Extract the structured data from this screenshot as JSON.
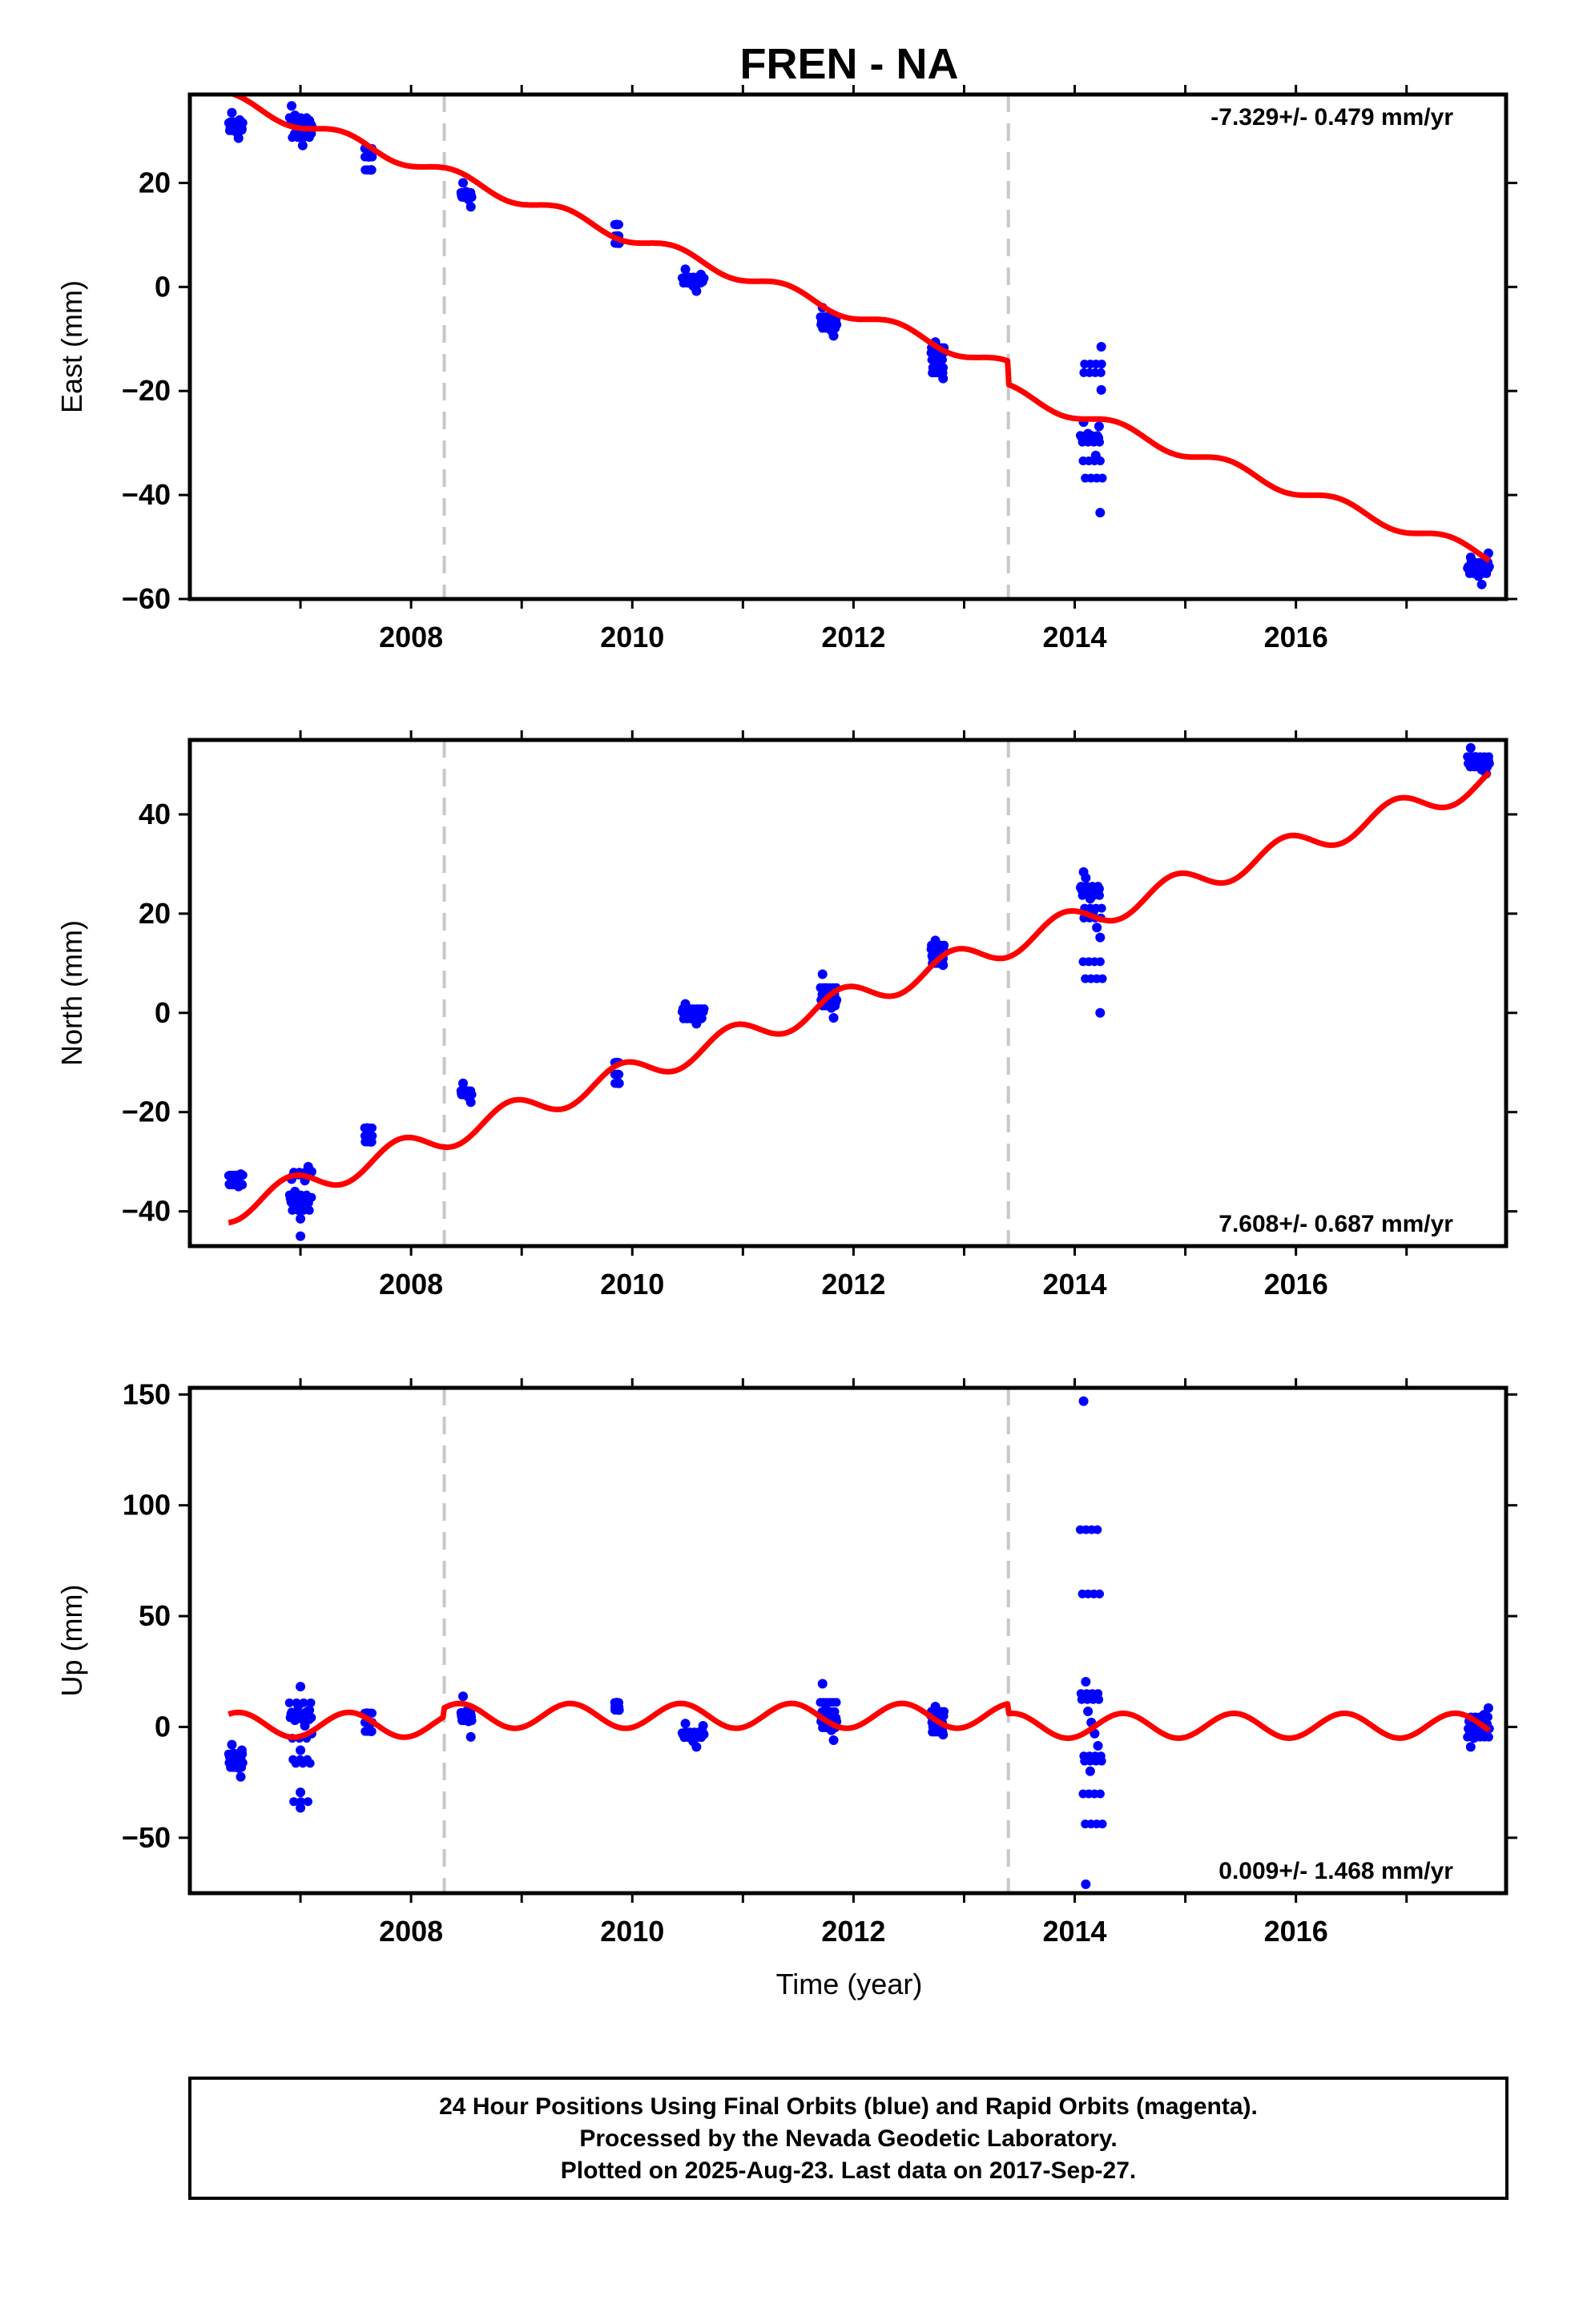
{
  "title": "FREN - NA",
  "xlabel": "Time (year)",
  "footer": {
    "line1": "24 Hour Positions Using Final Orbits (blue) and Rapid Orbits (magenta).",
    "line2": "Processed by the Nevada Geodetic Laboratory.",
    "line3": "Plotted on 2025-Aug-23. Last data on 2017-Sep-27."
  },
  "colors": {
    "data": "#0000ff",
    "model": "#ff0000",
    "break": "#c8c8c8",
    "frame": "#000000"
  },
  "chart_data": [
    {
      "type": "scatter",
      "name": "East",
      "ylabel": "East (mm)",
      "rate_text": "-7.329+/- 0.479 mm/yr",
      "xlim": [
        2006.0,
        2017.9
      ],
      "ylim": [
        -60,
        37
      ],
      "yticks": [
        20,
        0,
        -20,
        -40,
        -60
      ],
      "ytick_labels": [
        "20",
        "0",
        "−20",
        "−40",
        "−60"
      ],
      "xticks": [
        2008,
        2010,
        2012,
        2014,
        2016
      ],
      "xtick_labels": [
        "2008",
        "2010",
        "2012",
        "2014",
        "2016"
      ],
      "breaks": [
        2008.3,
        2013.4
      ],
      "model": {
        "rate": -7.329,
        "offset_at_2012": -5.2,
        "annual_amp": 1.2,
        "annual_phase": 5.4,
        "steps": [
          [
            2008.3,
            0.0
          ],
          [
            2013.4,
            -4.5
          ]
        ]
      },
      "clusters": [
        {
          "t": [
            2006.35,
            2006.48
          ],
          "points": [
            [
              2006.38,
              33.5
            ],
            [
              2006.4,
              31.2
            ],
            [
              2006.42,
              29.8
            ],
            [
              2006.44,
              28.6
            ],
            [
              2006.45,
              32.1
            ],
            [
              2006.47,
              30.4
            ]
          ]
        },
        {
          "t": [
            2006.9,
            2007.1
          ],
          "points": [
            [
              2006.92,
              34.8
            ],
            [
              2006.95,
              33.0
            ],
            [
              2006.97,
              31.5
            ],
            [
              2007.0,
              29.2
            ],
            [
              2007.02,
              27.2
            ],
            [
              2007.05,
              30.5
            ],
            [
              2007.08,
              32.0
            ],
            [
              2007.1,
              31.0
            ]
          ]
        },
        {
          "t": [
            2007.58,
            2007.65
          ],
          "points": [
            [
              2007.6,
              26.6
            ],
            [
              2007.62,
              25.0
            ],
            [
              2007.64,
              22.5
            ]
          ]
        },
        {
          "t": [
            2008.45,
            2008.55
          ],
          "points": [
            [
              2008.47,
              20.0
            ],
            [
              2008.5,
              18.3
            ],
            [
              2008.52,
              16.8
            ],
            [
              2008.54,
              15.4
            ]
          ]
        },
        {
          "t": [
            2009.84,
            2009.88
          ],
          "points": [
            [
              2009.86,
              12.0
            ],
            [
              2009.87,
              9.8
            ],
            [
              2009.88,
              8.4
            ]
          ]
        },
        {
          "t": [
            2010.45,
            2010.65
          ],
          "points": [
            [
              2010.48,
              3.4
            ],
            [
              2010.52,
              1.2
            ],
            [
              2010.55,
              0.2
            ],
            [
              2010.58,
              -0.8
            ],
            [
              2010.62,
              2.4
            ],
            [
              2010.64,
              1.5
            ]
          ]
        },
        {
          "t": [
            2011.7,
            2011.85
          ],
          "points": [
            [
              2011.72,
              -4.0
            ],
            [
              2011.75,
              -5.8
            ],
            [
              2011.78,
              -7.0
            ],
            [
              2011.8,
              -8.4
            ],
            [
              2011.82,
              -9.4
            ],
            [
              2011.84,
              -6.2
            ]
          ]
        },
        {
          "t": [
            2012.7,
            2012.82
          ],
          "points": [
            [
              2012.74,
              -10.6
            ],
            [
              2012.76,
              -12.4
            ],
            [
              2012.78,
              -14.0
            ],
            [
              2012.8,
              -15.8
            ],
            [
              2012.81,
              -17.6
            ]
          ]
        },
        {
          "t": [
            2014.05,
            2014.25
          ],
          "points": [
            [
              2014.08,
              -26.0
            ],
            [
              2014.12,
              -28.2
            ],
            [
              2014.16,
              -29.6
            ],
            [
              2014.19,
              -32.4
            ],
            [
              2014.22,
              -26.8
            ],
            [
              2014.24,
              -19.8
            ],
            [
              2014.24,
              -11.5
            ],
            [
              2014.23,
              -43.4
            ]
          ]
        },
        {
          "t": [
            2017.55,
            2017.75
          ],
          "points": [
            [
              2017.58,
              -52.0
            ],
            [
              2017.62,
              -54.0
            ],
            [
              2017.65,
              -55.6
            ],
            [
              2017.68,
              -57.2
            ],
            [
              2017.72,
              -53.4
            ],
            [
              2017.74,
              -51.2
            ]
          ]
        }
      ]
    },
    {
      "type": "scatter",
      "name": "North",
      "ylabel": "North (mm)",
      "rate_text": "7.608+/- 0.687 mm/yr",
      "xlim": [
        2006.0,
        2017.9
      ],
      "ylim": [
        -47,
        55
      ],
      "yticks": [
        40,
        20,
        0,
        -20,
        -40
      ],
      "ytick_labels": [
        "40",
        "20",
        "0",
        "−20",
        "−40"
      ],
      "xticks": [
        2008,
        2010,
        2012,
        2014,
        2016
      ],
      "xtick_labels": [
        "2008",
        "2010",
        "2012",
        "2014",
        "2016"
      ],
      "breaks": [
        2008.3,
        2013.4
      ],
      "model": {
        "rate": 7.608,
        "offset_at_2012": 3.2,
        "annual_amp": 2.6,
        "annual_phase": 2.2,
        "steps": [
          [
            2008.3,
            0.0
          ],
          [
            2013.4,
            0.0
          ]
        ]
      },
      "clusters": [
        {
          "t": [
            2006.35,
            2006.48
          ],
          "points": [
            [
              2006.38,
              -33.0
            ],
            [
              2006.41,
              -34.2
            ],
            [
              2006.44,
              -35.0
            ],
            [
              2006.46,
              -32.5
            ]
          ]
        },
        {
          "t": [
            2006.9,
            2007.1
          ],
          "points": [
            [
              2006.92,
              -33.5
            ],
            [
              2006.95,
              -36.0
            ],
            [
              2006.97,
              -39.5
            ],
            [
              2007.0,
              -41.5
            ],
            [
              2007.0,
              -45.0
            ],
            [
              2007.04,
              -33.8
            ],
            [
              2007.07,
              -31.0
            ],
            [
              2007.1,
              -32.0
            ]
          ]
        },
        {
          "t": [
            2007.58,
            2007.65
          ],
          "points": [
            [
              2007.6,
              -23.2
            ],
            [
              2007.62,
              -24.8
            ],
            [
              2007.64,
              -26.0
            ]
          ]
        },
        {
          "t": [
            2008.45,
            2008.55
          ],
          "points": [
            [
              2008.47,
              -14.2
            ],
            [
              2008.5,
              -15.8
            ],
            [
              2008.52,
              -17.0
            ],
            [
              2008.54,
              -18.0
            ]
          ]
        },
        {
          "t": [
            2009.84,
            2009.88
          ],
          "points": [
            [
              2009.86,
              -10.0
            ],
            [
              2009.87,
              -12.4
            ],
            [
              2009.88,
              -14.2
            ]
          ]
        },
        {
          "t": [
            2010.45,
            2010.65
          ],
          "points": [
            [
              2010.48,
              1.8
            ],
            [
              2010.52,
              0.2
            ],
            [
              2010.55,
              -1.2
            ],
            [
              2010.58,
              -2.2
            ],
            [
              2010.62,
              0.6
            ]
          ]
        },
        {
          "t": [
            2011.7,
            2011.85
          ],
          "points": [
            [
              2011.72,
              7.8
            ],
            [
              2011.75,
              5.0
            ],
            [
              2011.78,
              3.0
            ],
            [
              2011.8,
              1.0
            ],
            [
              2011.82,
              -1.0
            ],
            [
              2011.84,
              2.2
            ]
          ]
        },
        {
          "t": [
            2012.7,
            2012.82
          ],
          "points": [
            [
              2012.74,
              14.6
            ],
            [
              2012.76,
              13.0
            ],
            [
              2012.78,
              11.5
            ],
            [
              2012.8,
              10.2
            ],
            [
              2012.81,
              9.6
            ]
          ]
        },
        {
          "t": [
            2014.05,
            2014.25
          ],
          "points": [
            [
              2014.08,
              28.4
            ],
            [
              2014.1,
              27.2
            ],
            [
              2014.14,
              23.0
            ],
            [
              2014.17,
              20.5
            ],
            [
              2014.2,
              17.2
            ],
            [
              2014.23,
              15.2
            ],
            [
              2014.22,
              25.0
            ],
            [
              2014.23,
              0.0
            ]
          ]
        },
        {
          "t": [
            2017.55,
            2017.75
          ],
          "points": [
            [
              2017.58,
              53.4
            ],
            [
              2017.62,
              51.6
            ],
            [
              2017.65,
              50.2
            ],
            [
              2017.68,
              49.0
            ],
            [
              2017.72,
              48.2
            ],
            [
              2017.74,
              50.8
            ]
          ]
        }
      ]
    },
    {
      "type": "scatter",
      "name": "Up",
      "ylabel": "Up (mm)",
      "rate_text": "0.009+/- 1.468 mm/yr",
      "xlim": [
        2006.0,
        2017.9
      ],
      "ylim": [
        -75,
        153
      ],
      "yticks": [
        150,
        100,
        50,
        0,
        -50
      ],
      "ytick_labels": [
        "150",
        "100",
        "50",
        "0",
        "−50"
      ],
      "xticks": [
        2008,
        2010,
        2012,
        2014,
        2016
      ],
      "xtick_labels": [
        "2008",
        "2010",
        "2012",
        "2014",
        "2016"
      ],
      "breaks": [
        2008.3,
        2013.4
      ],
      "model": {
        "rate": 0.009,
        "offset_at_2012": 1.0,
        "annual_amp": 5.6,
        "annual_phase": 5.1,
        "steps": [
          [
            2008.3,
            4.0
          ],
          [
            2013.4,
            -4.5
          ]
        ]
      },
      "clusters": [
        {
          "t": [
            2006.35,
            2006.48
          ],
          "points": [
            [
              2006.38,
              -8.0
            ],
            [
              2006.4,
              -12.0
            ],
            [
              2006.42,
              -15.5
            ],
            [
              2006.44,
              -18.5
            ],
            [
              2006.46,
              -22.5
            ],
            [
              2006.47,
              -10.5
            ]
          ]
        },
        {
          "t": [
            2006.9,
            2007.1
          ],
          "points": [
            [
              2006.92,
              6.0
            ],
            [
              2006.95,
              3.0
            ],
            [
              2006.98,
              9.5
            ],
            [
              2007.0,
              18.2
            ],
            [
              2007.0,
              -10.5
            ],
            [
              2007.0,
              -29.5
            ],
            [
              2007.0,
              -36.5
            ],
            [
              2007.04,
              0.5
            ],
            [
              2007.08,
              7.5
            ],
            [
              2007.1,
              -3.0
            ]
          ]
        },
        {
          "t": [
            2007.58,
            2007.65
          ],
          "points": [
            [
              2007.6,
              6.2
            ],
            [
              2007.62,
              2.0
            ],
            [
              2007.64,
              -2.0
            ]
          ]
        },
        {
          "t": [
            2008.45,
            2008.55
          ],
          "points": [
            [
              2008.47,
              13.8
            ],
            [
              2008.5,
              7.0
            ],
            [
              2008.52,
              2.5
            ],
            [
              2008.54,
              -4.5
            ]
          ]
        },
        {
          "t": [
            2009.84,
            2009.88
          ],
          "points": [
            [
              2009.86,
              11.0
            ],
            [
              2009.87,
              9.0
            ],
            [
              2009.88,
              7.6
            ]
          ]
        },
        {
          "t": [
            2010.45,
            2010.65
          ],
          "points": [
            [
              2010.48,
              1.5
            ],
            [
              2010.52,
              -3.0
            ],
            [
              2010.55,
              -6.5
            ],
            [
              2010.58,
              -9.0
            ],
            [
              2010.62,
              -4.0
            ],
            [
              2010.64,
              0.5
            ]
          ]
        },
        {
          "t": [
            2011.7,
            2011.85
          ],
          "points": [
            [
              2011.72,
              19.5
            ],
            [
              2011.75,
              8.0
            ],
            [
              2011.78,
              3.5
            ],
            [
              2011.8,
              -1.5
            ],
            [
              2011.82,
              -6.0
            ],
            [
              2011.84,
              4.0
            ]
          ]
        },
        {
          "t": [
            2012.7,
            2012.82
          ],
          "points": [
            [
              2012.74,
              9.2
            ],
            [
              2012.76,
              5.5
            ],
            [
              2012.78,
              2.0
            ],
            [
              2012.8,
              -1.5
            ],
            [
              2012.81,
              -3.5
            ]
          ]
        },
        {
          "t": [
            2014.05,
            2014.25
          ],
          "points": [
            [
              2014.08,
              147.0
            ],
            [
              2014.1,
              20.4
            ],
            [
              2014.12,
              7.0
            ],
            [
              2014.15,
              2.0
            ],
            [
              2014.18,
              -3.0
            ],
            [
              2014.21,
              -8.5
            ],
            [
              2014.14,
              -20.0
            ],
            [
              2014.1,
              -71.0
            ]
          ]
        },
        {
          "t": [
            2017.55,
            2017.75
          ],
          "points": [
            [
              2017.58,
              -9.0
            ],
            [
              2017.61,
              -5.0
            ],
            [
              2017.64,
              -1.5
            ],
            [
              2017.67,
              2.0
            ],
            [
              2017.7,
              5.5
            ],
            [
              2017.74,
              8.5
            ]
          ]
        }
      ]
    }
  ]
}
